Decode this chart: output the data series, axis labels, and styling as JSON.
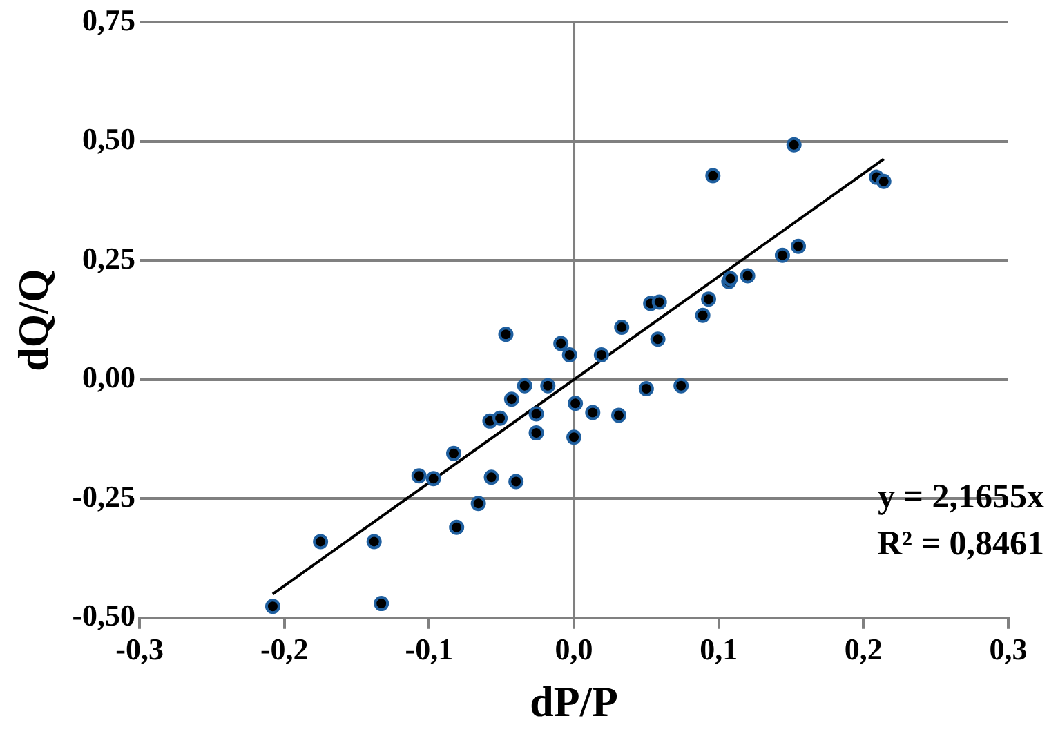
{
  "chart_data": {
    "type": "scatter",
    "xlabel": "dP/P",
    "ylabel": "dQ/Q",
    "xlim": [
      -0.3,
      0.3
    ],
    "ylim": [
      -0.5,
      0.75
    ],
    "xticks": [
      {
        "value": -0.3,
        "label": "-0,3"
      },
      {
        "value": -0.2,
        "label": "-0,2"
      },
      {
        "value": -0.1,
        "label": "-0,1"
      },
      {
        "value": 0,
        "label": "0,0"
      },
      {
        "value": 0.1,
        "label": "0,1"
      },
      {
        "value": 0.2,
        "label": "0,2"
      },
      {
        "value": 0.3,
        "label": "0,3"
      }
    ],
    "yticks": [
      {
        "value": -0.5,
        "label": "-0,50"
      },
      {
        "value": -0.25,
        "label": "-0,25"
      },
      {
        "value": 0,
        "label": "0,00"
      },
      {
        "value": 0.25,
        "label": "0,25"
      },
      {
        "value": 0.5,
        "label": "0,50"
      },
      {
        "value": 0.75,
        "label": "0,75"
      }
    ],
    "grid": "y",
    "legend": false,
    "marker": "circle",
    "ref_lines": [
      {
        "axis": "x",
        "value": 0,
        "color": "#808080"
      }
    ],
    "series": [
      {
        "color": "#1f5f9f",
        "x": [
          -0.208,
          -0.175,
          -0.138,
          -0.133,
          -0.107,
          -0.097,
          -0.083,
          -0.081,
          -0.066,
          -0.057,
          -0.058,
          -0.051,
          -0.043,
          -0.04,
          -0.034,
          -0.026,
          -0.026,
          -0.047,
          -0.018,
          -0.009,
          -0.003,
          0.001,
          0.0,
          0.013,
          0.031,
          0.019,
          0.033,
          0.05,
          0.053,
          0.059,
          0.058,
          0.074,
          0.089,
          0.093,
          0.096,
          0.107,
          0.108,
          0.12,
          0.144,
          0.155,
          0.152,
          0.209,
          0.214
        ],
        "values": [
          -0.476,
          -0.34,
          -0.34,
          -0.47,
          -0.202,
          -0.208,
          -0.155,
          -0.31,
          -0.26,
          -0.205,
          -0.087,
          -0.081,
          -0.041,
          -0.214,
          -0.013,
          -0.072,
          -0.112,
          0.095,
          -0.013,
          0.076,
          0.052,
          -0.05,
          -0.121,
          -0.069,
          -0.075,
          0.052,
          0.11,
          -0.019,
          0.16,
          0.163,
          0.085,
          -0.013,
          0.135,
          0.169,
          0.428,
          0.206,
          0.212,
          0.218,
          0.261,
          0.28,
          0.493,
          0.425,
          0.416
        ]
      },
      {
        "type": "line",
        "color": "#000000",
        "line_style": "solid",
        "marker": "none",
        "x": [
          -0.208,
          0.214
        ],
        "values": [
          -0.45,
          0.463
        ]
      }
    ],
    "annotations": [
      "y = 2,1655x",
      "R² = 0,8461"
    ]
  }
}
